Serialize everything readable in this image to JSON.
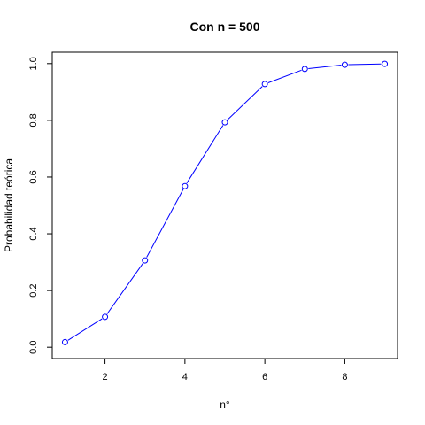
{
  "chart_data": {
    "type": "line",
    "title": "Con n = 500",
    "xlabel": "n°",
    "ylabel": "Probabilidad teórica",
    "x": [
      1,
      2,
      3,
      4,
      5,
      6,
      7,
      8,
      9
    ],
    "series": [
      {
        "values": [
          0.018,
          0.107,
          0.306,
          0.568,
          0.793,
          0.928,
          0.981,
          0.996,
          0.999
        ],
        "color": "#0000ff",
        "marker": "open-circle"
      }
    ],
    "xlim": [
      0.68,
      9.32
    ],
    "ylim": [
      -0.04,
      1.04
    ],
    "xticks": [
      2,
      4,
      6,
      8
    ],
    "xtick_labels": [
      "2",
      "4",
      "6",
      "8"
    ],
    "yticks": [
      0.0,
      0.2,
      0.4,
      0.6,
      0.8,
      1.0
    ],
    "ytick_labels": [
      "0.0",
      "0.2",
      "0.4",
      "0.6",
      "0.8",
      "1.0"
    ],
    "grid": false,
    "legend": "none"
  }
}
